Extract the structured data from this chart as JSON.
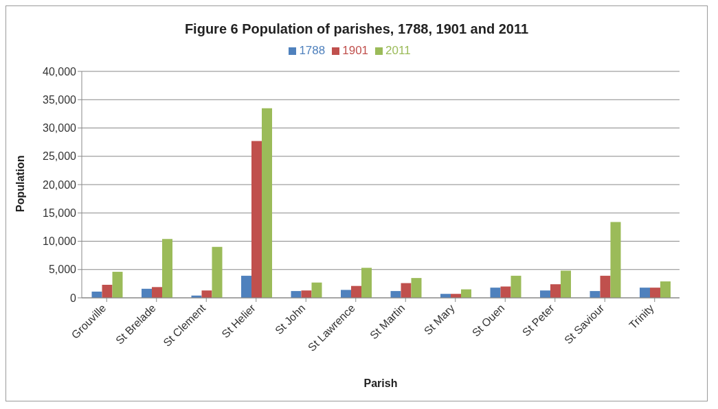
{
  "chart_data": {
    "type": "bar",
    "title": "Figure 6  Population of parishes, 1788, 1901 and 2011",
    "xlabel": "Parish",
    "ylabel": "Population",
    "categories": [
      "Grouville",
      "St Brelade",
      "St Clement",
      "St Helier",
      "St John",
      "St Lawrence",
      "St Martin",
      "St Mary",
      "St Ouen",
      "St Peter",
      "St Saviour",
      "Trinity"
    ],
    "series": [
      {
        "name": "1788",
        "color": "#4f81bd",
        "values": [
          1100,
          1600,
          400,
          3900,
          1200,
          1400,
          1200,
          700,
          1800,
          1300,
          1200,
          1800
        ]
      },
      {
        "name": "1901",
        "color": "#c0504d",
        "values": [
          2300,
          1900,
          1300,
          27700,
          1300,
          2100,
          2600,
          700,
          2000,
          2400,
          3900,
          1800
        ]
      },
      {
        "name": "2011",
        "color": "#9bbb59",
        "values": [
          4600,
          10400,
          9000,
          33500,
          2700,
          5300,
          3500,
          1500,
          3900,
          4800,
          13400,
          2900
        ]
      }
    ],
    "ylim": [
      0,
      40000
    ],
    "yticks": [
      {
        "value": 0,
        "label": "0"
      },
      {
        "value": 5000,
        "label": "5,000"
      },
      {
        "value": 10000,
        "label": "10,000"
      },
      {
        "value": 15000,
        "label": "15,000"
      },
      {
        "value": 20000,
        "label": "20,000"
      },
      {
        "value": 25000,
        "label": "25,000"
      },
      {
        "value": 30000,
        "label": "30,000"
      },
      {
        "value": 35000,
        "label": "35,000"
      },
      {
        "value": 40000,
        "label": "40,000"
      }
    ],
    "grid": "y",
    "legend": "top"
  }
}
